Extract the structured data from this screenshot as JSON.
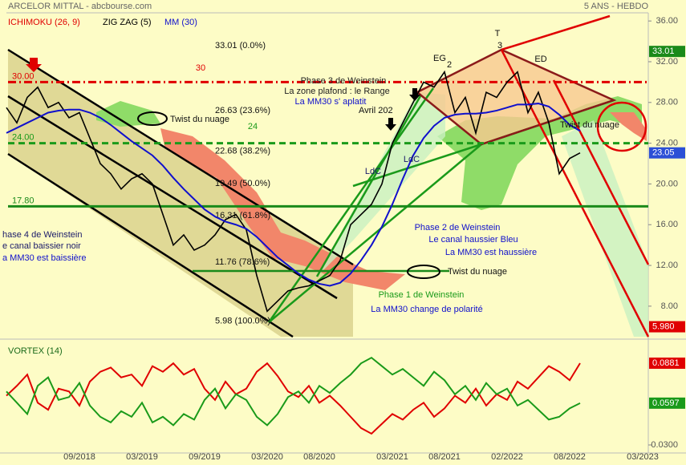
{
  "header": {
    "title": "ARCELOR MITTAL - abcbourse.com",
    "period": "5 ANS - HEBDO",
    "legend": [
      {
        "label": "ICHIMOKU (26, 9)",
        "color": "#e00000"
      },
      {
        "label": "ZIG ZAG (5)",
        "color": "#000000"
      }
    ]
  },
  "chart_data": [
    {
      "type": "line",
      "color": "#000000",
      "label_color": "#2b4fd6",
      "values": [
        27.5,
        26,
        28.5,
        29.5,
        27.5,
        28,
        26.5,
        27,
        24.5,
        22,
        21,
        19.5,
        20.5,
        21,
        20,
        17,
        14,
        15,
        13.5,
        14,
        15,
        16.5,
        17,
        15.5,
        11,
        7.5,
        8.5,
        9.5,
        9.8,
        10,
        10.5,
        11,
        12.5,
        16,
        17,
        18,
        20,
        24,
        26,
        28,
        30,
        29.5,
        31,
        27,
        28.5,
        25,
        29,
        28.5,
        30,
        31,
        27,
        29,
        26,
        21,
        22.5,
        23.05,
        null,
        null,
        null,
        null,
        null,
        null
      ],
      "value_labels": [
        null,
        null,
        null,
        null,
        null,
        null,
        null,
        null,
        null,
        null,
        null,
        null,
        null,
        null,
        null,
        null,
        null,
        null,
        null,
        null,
        null,
        null,
        null,
        null,
        null,
        null,
        null,
        null,
        null,
        null,
        null,
        null,
        null,
        null,
        null,
        null,
        null,
        null,
        null,
        null,
        null,
        null,
        null,
        null,
        null,
        null,
        null,
        null,
        null,
        null,
        null,
        null,
        null,
        null,
        null,
        "23.05",
        null,
        null,
        null,
        null,
        null,
        null
      ],
      "series": [
        {
          "name": "MM (30)",
          "color": "#1010cc",
          "values": [
            25.0,
            25.5,
            26.0,
            26.5,
            27.0,
            27.2,
            27.3,
            27.3,
            27.0,
            26.5,
            25.8,
            25.0,
            24.2,
            23.5,
            22.8,
            21.8,
            20.6,
            19.5,
            18.5,
            17.5,
            16.8,
            16.3,
            16.0,
            15.6,
            14.8,
            13.8,
            12.8,
            12.0,
            11.2,
            10.6,
            10.2,
            10.0,
            10.3,
            11.2,
            12.5,
            14.0,
            15.8,
            18.0,
            20.5,
            22.8,
            24.5,
            25.7,
            26.5,
            26.8,
            26.9,
            26.9,
            27.0,
            27.2,
            27.5,
            27.8,
            27.8,
            27.9,
            27.6,
            26.8,
            25.8,
            25.2,
            null,
            null,
            null,
            null,
            null,
            null
          ]
        }
      ],
      "ylim": [
        5,
        36.8
      ],
      "yticks": [
        {
          "value": 8,
          "label": "8.00"
        },
        {
          "value": 12,
          "label": "12.00"
        },
        {
          "value": 16,
          "label": "16.00"
        },
        {
          "value": 20,
          "label": "20.00"
        },
        {
          "value": 24,
          "label": "24.00"
        },
        {
          "value": 28,
          "label": "28.00"
        },
        {
          "value": 32,
          "label": "32.00"
        },
        {
          "value": 36,
          "label": "36.00"
        }
      ],
      "levels": [
        {
          "value": 30,
          "label": "30.00",
          "color": "#e00000",
          "style": "dashdot"
        },
        {
          "value": 24,
          "label": "24.00",
          "color": "#1a9a1a",
          "style": "dash"
        },
        {
          "value": 17.8,
          "label": "17.80",
          "color": "#1a8a1a",
          "style": "solid"
        }
      ],
      "fibonacci": [
        {
          "value": 33.01,
          "label": "33.01  (0.0%)"
        },
        {
          "value": 26.63,
          "label": "26.63  (23.6%)"
        },
        {
          "value": 22.68,
          "label": "22.68  (38.2%)"
        },
        {
          "value": 19.49,
          "label": "19.49  (50.0%)"
        },
        {
          "value": 16.31,
          "label": "16.31  (61.8%)"
        },
        {
          "value": 11.76,
          "label": "11.76  (78.6%)"
        },
        {
          "value": 5.98,
          "label": "5.98  (100.0%)"
        }
      ],
      "price_boxes": [
        {
          "value": 33.01,
          "label": "33.01",
          "color": "#1a8a1a"
        },
        {
          "value": 5.98,
          "label": "5.980",
          "color": "#e00000"
        }
      ],
      "annotations": [
        "30",
        "24",
        "Phase 3 de Weinstein",
        "La zone plafond : le Range",
        "La MM30 s' aplatit",
        "Avril 202",
        "Phase 2 de Weinstein",
        "Le canal haussier Bleu",
        "La MM30 est haussière",
        "Phase 1 de Weinstein",
        "La MM30 change de polarité",
        "hase 4 de Weinstein",
        "e canal baissier noir",
        "a MM30 est baissière",
        "Twist du nuage",
        "Twist du nuage",
        "Twist du nuage",
        "LdC",
        "LdC",
        "EG",
        "2",
        "T",
        "3",
        "ED"
      ]
    },
    {
      "type": "line",
      "title": "VORTEX (14)",
      "categories": [
        null,
        null,
        null,
        null,
        null,
        null,
        null,
        "09/2018",
        null,
        null,
        null,
        null,
        null,
        "03/2019",
        null,
        null,
        null,
        null,
        null,
        "09/2019",
        null,
        null,
        null,
        null,
        null,
        "03/2020",
        null,
        null,
        null,
        null,
        "08/2020",
        null,
        null,
        null,
        null,
        null,
        null,
        "03/2021",
        null,
        null,
        null,
        null,
        "08/2021",
        null,
        null,
        null,
        null,
        null,
        "02/2022",
        null,
        null,
        null,
        null,
        null,
        "08/2022",
        null,
        null,
        null,
        null,
        null,
        null,
        "03/2023"
      ],
      "series": [
        {
          "color": "#e00000",
          "values": [
            0.065,
            0.072,
            0.08,
            0.06,
            0.055,
            0.07,
            0.068,
            0.058,
            0.075,
            0.082,
            0.085,
            0.078,
            0.08,
            0.072,
            0.086,
            0.082,
            0.088,
            0.08,
            0.084,
            0.07,
            0.062,
            0.075,
            0.066,
            0.07,
            0.082,
            0.088,
            0.079,
            0.068,
            0.064,
            0.072,
            0.06,
            0.065,
            0.058,
            0.05,
            0.042,
            0.038,
            0.045,
            0.052,
            0.048,
            0.055,
            0.06,
            0.05,
            0.056,
            0.065,
            0.06,
            0.07,
            0.058,
            0.066,
            0.062,
            0.075,
            0.07,
            0.078,
            0.086,
            0.082,
            0.076,
            0.0881,
            null,
            null,
            null,
            null,
            null,
            null
          ],
          "value_labels": [
            null,
            null,
            null,
            null,
            null,
            null,
            null,
            null,
            null,
            null,
            null,
            null,
            null,
            null,
            null,
            null,
            null,
            null,
            null,
            null,
            null,
            null,
            null,
            null,
            null,
            null,
            null,
            null,
            null,
            null,
            null,
            null,
            null,
            null,
            null,
            null,
            null,
            null,
            null,
            null,
            null,
            null,
            null,
            null,
            null,
            null,
            null,
            null,
            null,
            null,
            null,
            null,
            null,
            null,
            null,
            "0.0881",
            null,
            null,
            null,
            null,
            null,
            null
          ]
        },
        {
          "color": "#1a9a1a",
          "values": [
            0.068,
            0.06,
            0.052,
            0.072,
            0.078,
            0.062,
            0.064,
            0.074,
            0.058,
            0.05,
            0.046,
            0.054,
            0.05,
            0.06,
            0.046,
            0.05,
            0.044,
            0.052,
            0.048,
            0.062,
            0.07,
            0.056,
            0.066,
            0.062,
            0.05,
            0.044,
            0.052,
            0.064,
            0.068,
            0.06,
            0.072,
            0.067,
            0.074,
            0.08,
            0.088,
            0.092,
            0.086,
            0.08,
            0.084,
            0.078,
            0.072,
            0.082,
            0.076,
            0.066,
            0.072,
            0.062,
            0.074,
            0.066,
            0.07,
            0.058,
            0.062,
            0.055,
            0.048,
            0.05,
            0.056,
            0.0597,
            null,
            null,
            null,
            null,
            null,
            null
          ],
          "value_labels": [
            null,
            null,
            null,
            null,
            null,
            null,
            null,
            null,
            null,
            null,
            null,
            null,
            null,
            null,
            null,
            null,
            null,
            null,
            null,
            null,
            null,
            null,
            null,
            null,
            null,
            null,
            null,
            null,
            null,
            null,
            null,
            null,
            null,
            null,
            null,
            null,
            null,
            null,
            null,
            null,
            null,
            null,
            null,
            null,
            null,
            null,
            null,
            null,
            null,
            null,
            null,
            null,
            null,
            null,
            null,
            "0.0597",
            null,
            null,
            null,
            null,
            null,
            null
          ]
        }
      ],
      "ylim": [
        0.0243,
        0.1012
      ],
      "yticks": [
        {
          "value": 0.03,
          "label": "0.0300"
        }
      ]
    }
  ]
}
